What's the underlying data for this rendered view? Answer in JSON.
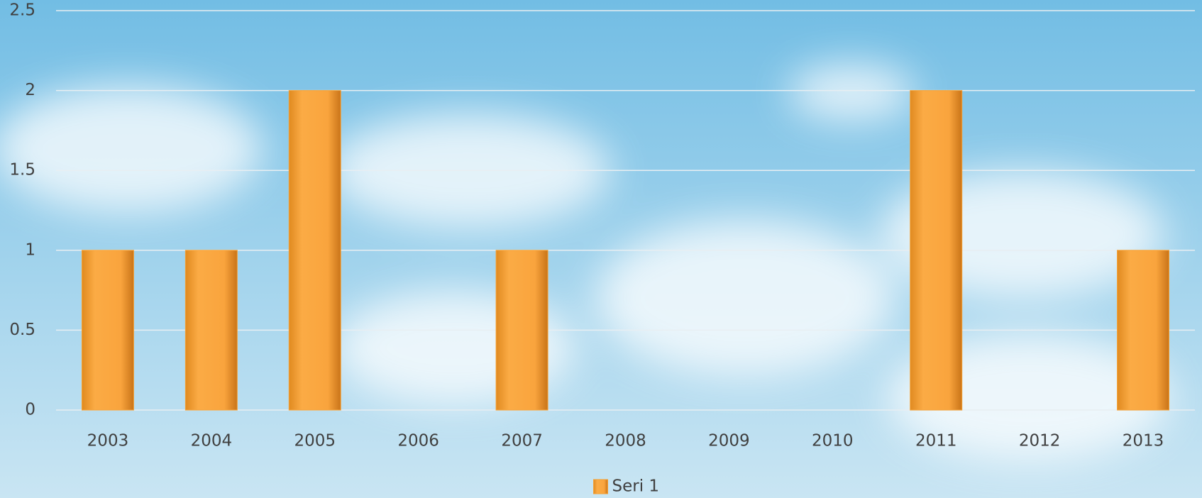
{
  "chart_data": {
    "type": "bar",
    "categories": [
      "2003",
      "2004",
      "2005",
      "2006",
      "2007",
      "2008",
      "2009",
      "2010",
      "2011",
      "2012",
      "2013"
    ],
    "series": [
      {
        "name": "Seri 1",
        "color": "#f5a033",
        "values": [
          1,
          1,
          2,
          0,
          1,
          0,
          0,
          0,
          2,
          0,
          1
        ]
      }
    ],
    "ylim": [
      0,
      2.5
    ],
    "yticks": [
      0,
      0.5,
      1,
      1.5,
      2,
      2.5
    ],
    "grid": true,
    "legend": "bottom"
  }
}
